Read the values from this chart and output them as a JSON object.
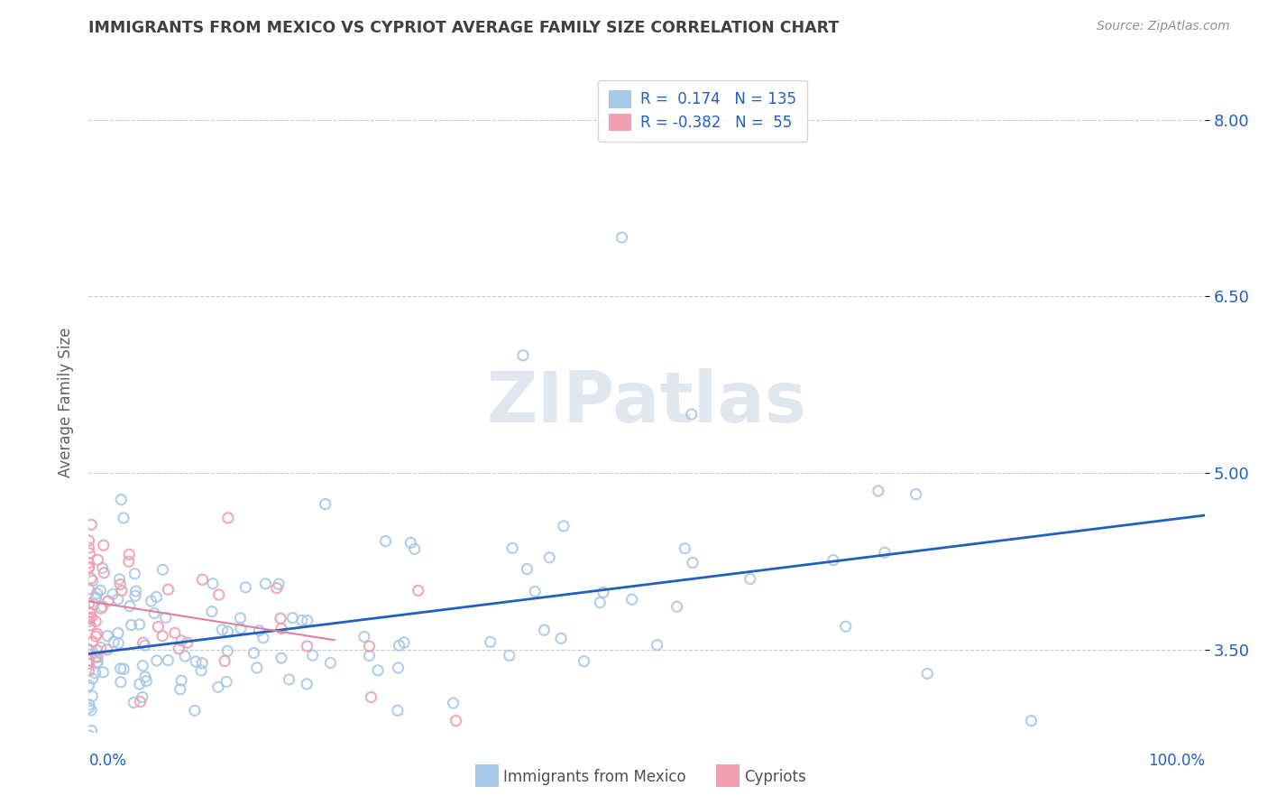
{
  "title": "IMMIGRANTS FROM MEXICO VS CYPRIOT AVERAGE FAMILY SIZE CORRELATION CHART",
  "source": "Source: ZipAtlas.com",
  "ylabel": "Average Family Size",
  "legend_bottom_left": "Immigrants from Mexico",
  "legend_bottom_right": "Cypriots",
  "r_mexico": 0.174,
  "n_mexico": 135,
  "r_cypriot": -0.382,
  "n_cypriot": 55,
  "yticks": [
    3.5,
    5.0,
    6.5,
    8.0
  ],
  "xlim": [
    0.0,
    1.0
  ],
  "ylim": [
    2.8,
    8.4
  ],
  "color_mexico": "#a8c8e8",
  "color_cypriot": "#f0a0b0",
  "color_line": "#2060c0",
  "color_line_cypriot": "#e080a0",
  "watermark": "ZIPatlas",
  "background_color": "#ffffff",
  "title_color": "#404040",
  "source_color": "#909090",
  "label_color": "#2060c0",
  "seed": 42
}
